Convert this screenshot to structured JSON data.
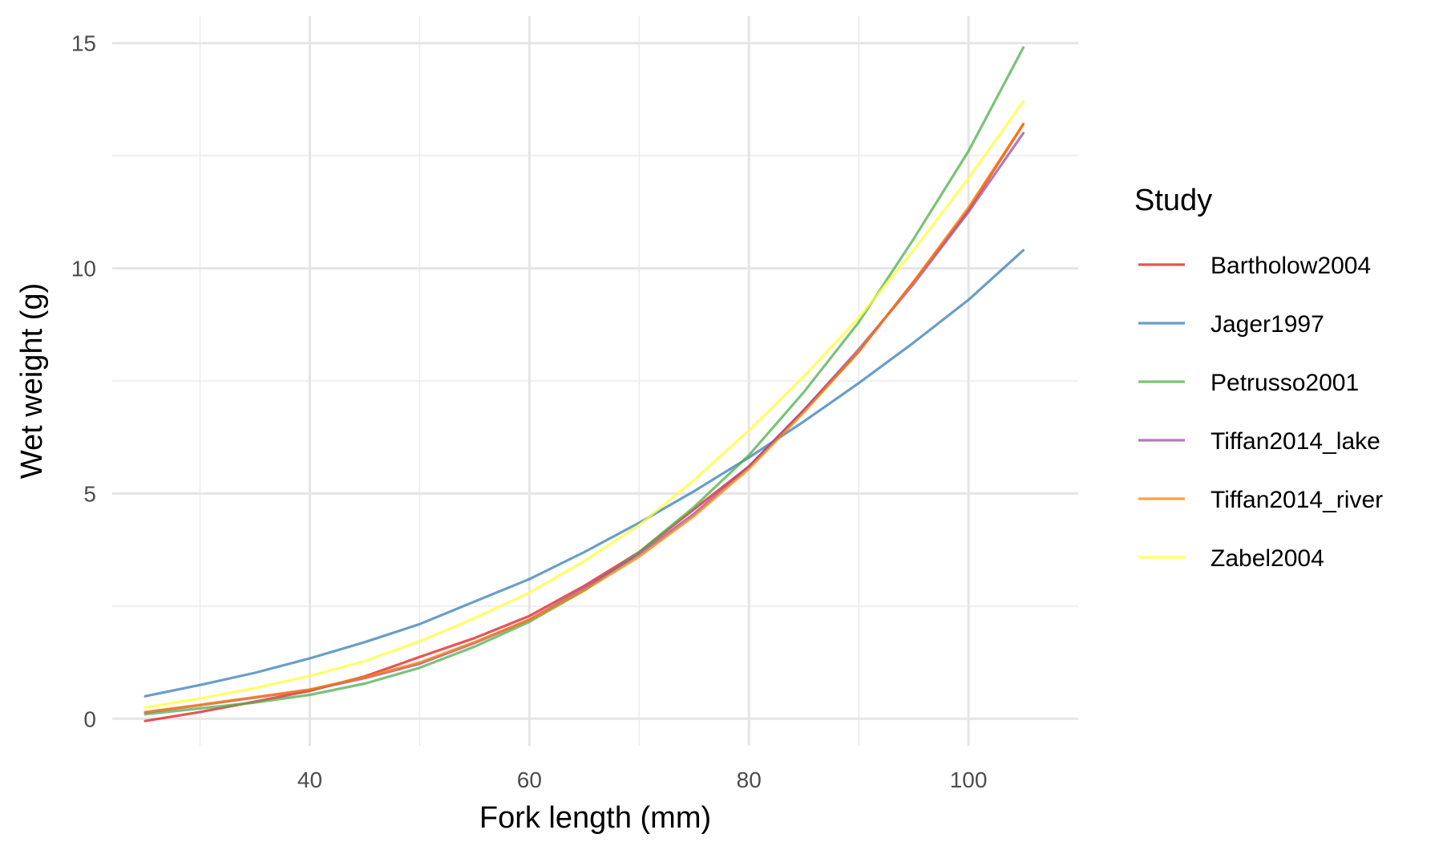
{
  "chart_data": {
    "type": "line",
    "title": "",
    "xlabel": "Fork length (mm)",
    "ylabel": "Wet weight (g)",
    "xlim": [
      22,
      110
    ],
    "ylim": [
      -0.6,
      15.6
    ],
    "x_ticks": [
      40,
      60,
      80,
      100
    ],
    "x_tick_labels": [
      "40",
      "60",
      "80",
      "100"
    ],
    "x_minor_ticks": [
      30,
      50,
      70,
      90
    ],
    "y_ticks": [
      0,
      5,
      10,
      15
    ],
    "y_tick_labels": [
      "0",
      "5",
      "10",
      "15"
    ],
    "y_minor_ticks": [
      2.5,
      7.5,
      12.5
    ],
    "grid": true,
    "legend": {
      "title": "Study",
      "placement": "right"
    },
    "x": [
      25,
      30,
      35,
      40,
      45,
      50,
      55,
      60,
      65,
      70,
      75,
      80,
      85,
      90,
      95,
      100,
      105
    ],
    "series": [
      {
        "name": "Bartholow2004",
        "color": "#E41A1C",
        "values": [
          -0.05,
          0.15,
          0.38,
          0.62,
          0.94,
          1.37,
          1.79,
          2.28,
          2.95,
          3.7,
          4.65,
          5.6,
          6.85,
          8.15,
          9.7,
          11.3,
          13.2
        ]
      },
      {
        "name": "Jager1997",
        "color": "#377EB8",
        "values": [
          0.5,
          0.75,
          1.02,
          1.34,
          1.7,
          2.1,
          2.6,
          3.1,
          3.7,
          4.35,
          5.05,
          5.8,
          6.6,
          7.45,
          8.35,
          9.3,
          10.4
        ]
      },
      {
        "name": "Petrusso2001",
        "color": "#4DAF4A",
        "values": [
          0.1,
          0.23,
          0.36,
          0.53,
          0.78,
          1.13,
          1.6,
          2.15,
          2.85,
          3.7,
          4.7,
          5.85,
          7.25,
          8.8,
          10.65,
          12.6,
          14.9
        ]
      },
      {
        "name": "Tiffan2014_lake",
        "color": "#984EA3",
        "values": [
          0.14,
          0.3,
          0.47,
          0.64,
          0.9,
          1.22,
          1.68,
          2.2,
          2.9,
          3.65,
          4.55,
          5.6,
          6.85,
          8.2,
          9.65,
          11.25,
          13.0
        ]
      },
      {
        "name": "Tiffan2014_river",
        "color": "#FF7F00",
        "values": [
          0.15,
          0.31,
          0.48,
          0.65,
          0.92,
          1.25,
          1.7,
          2.2,
          2.85,
          3.6,
          4.5,
          5.55,
          6.8,
          8.15,
          9.7,
          11.35,
          13.2
        ]
      },
      {
        "name": "Zabel2004",
        "color": "#FFFF33",
        "values": [
          0.25,
          0.45,
          0.68,
          0.95,
          1.28,
          1.72,
          2.23,
          2.8,
          3.5,
          4.3,
          5.3,
          6.4,
          7.6,
          8.9,
          10.4,
          12.0,
          13.7
        ]
      }
    ]
  }
}
